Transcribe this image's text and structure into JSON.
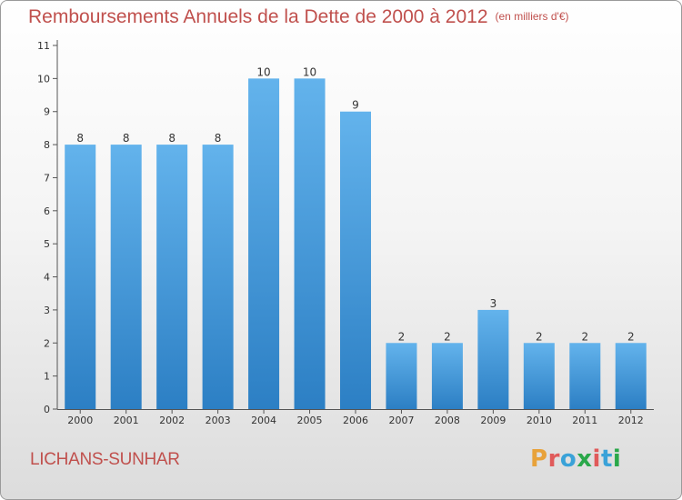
{
  "chart_data": {
    "type": "bar",
    "title": "Remboursements Annuels de la Dette de 2000 à 2012",
    "subtitle": "(en milliers d'€)",
    "categories": [
      "2000",
      "2001",
      "2002",
      "2003",
      "2004",
      "2005",
      "2006",
      "2007",
      "2008",
      "2009",
      "2010",
      "2011",
      "2012"
    ],
    "values": [
      8,
      8,
      8,
      8,
      10,
      10,
      9,
      2,
      2,
      3,
      2,
      2,
      2
    ],
    "data_labels": [
      "8",
      "8",
      "8",
      "8",
      "10",
      "10",
      "9",
      "2",
      "2",
      "3",
      "2",
      "2",
      "2"
    ],
    "yticks": [
      "0",
      "1",
      "2",
      "3",
      "4",
      "5",
      "6",
      "7",
      "8",
      "9",
      "10",
      "11"
    ],
    "ylim": [
      0,
      11
    ],
    "grid": false,
    "legend": "none",
    "bar_color": "#4f9fd8"
  },
  "commune": "LICHANS-SUNHAR",
  "logo": {
    "text": "Proxiti",
    "colors": [
      "#e8a23a",
      "#e05a5a",
      "#3aa2d8",
      "#2aa84a",
      "#e05a5a",
      "#3aa2d8",
      "#2aa84a"
    ]
  }
}
